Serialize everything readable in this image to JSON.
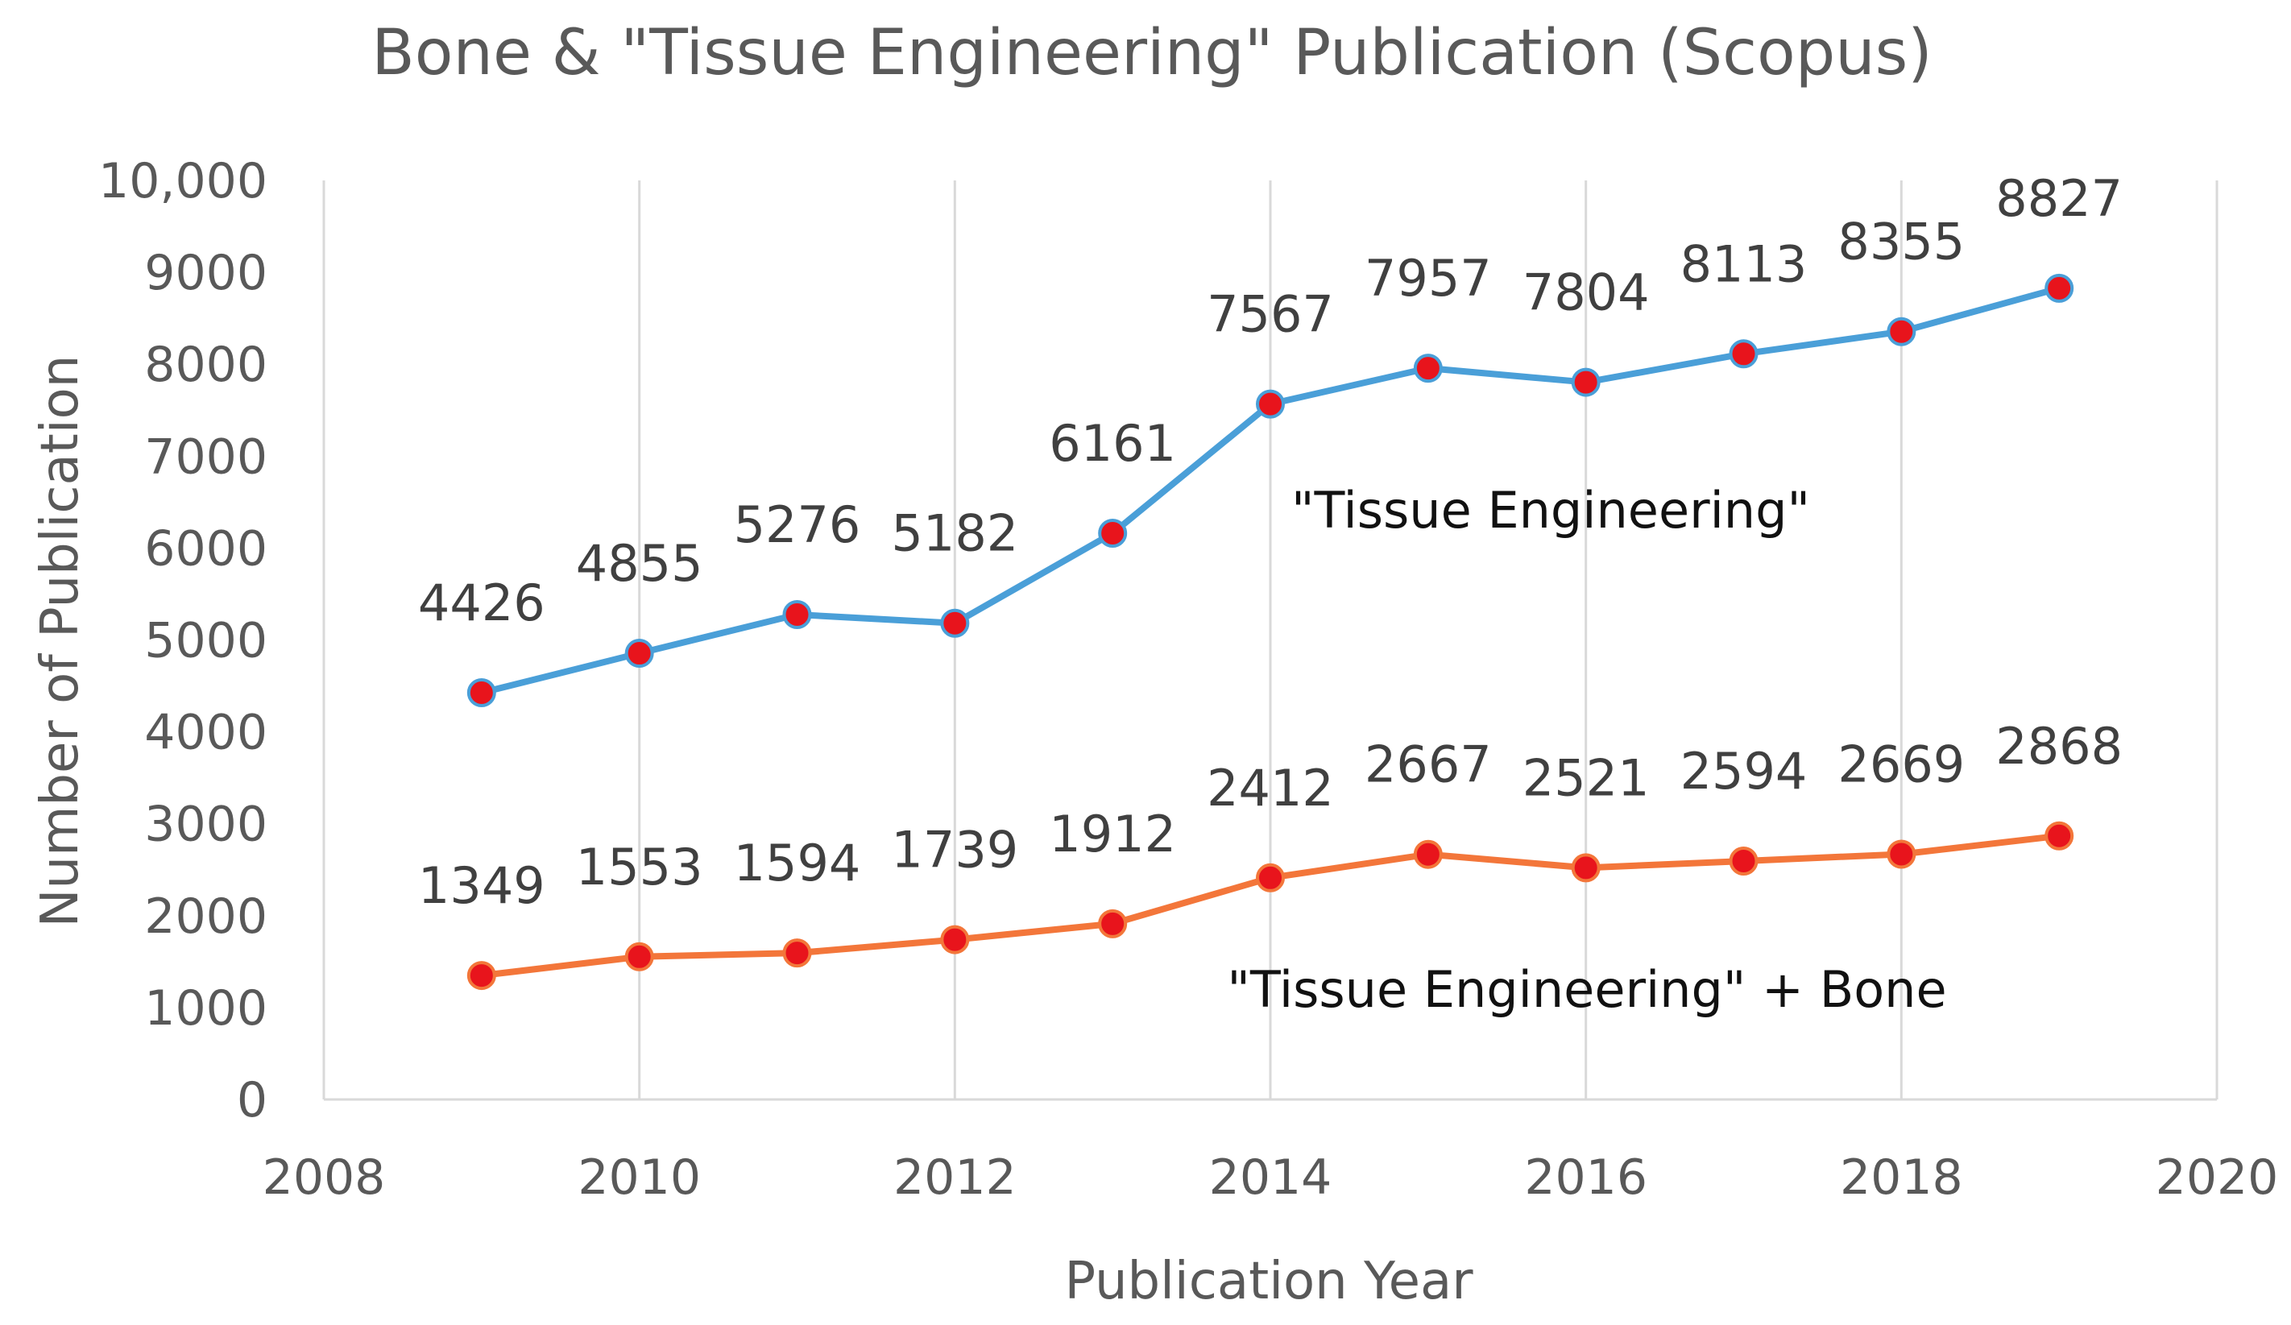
{
  "chart_data": {
    "type": "line",
    "title": "Bone & \"Tissue Engineering\" Publication (Scopus)",
    "xlabel": "Publication Year",
    "ylabel": "Number of Publication",
    "xlim": [
      2008,
      2020
    ],
    "ylim": [
      0,
      10000
    ],
    "x_ticks": [
      2008,
      2010,
      2012,
      2014,
      2016,
      2018,
      2020
    ],
    "x_tick_labels": [
      "2008",
      "2010",
      "2012",
      "2014",
      "2016",
      "2018",
      "2020"
    ],
    "y_ticks": [
      0,
      1000,
      2000,
      3000,
      4000,
      5000,
      6000,
      7000,
      8000,
      9000,
      10000
    ],
    "y_tick_labels": [
      "0",
      "1000",
      "2000",
      "3000",
      "4000",
      "5000",
      "6000",
      "7000",
      "8000",
      "9000",
      "10,000"
    ],
    "grid": "vertical",
    "x": [
      2009,
      2010,
      2011,
      2012,
      2013,
      2014,
      2015,
      2016,
      2017,
      2018,
      2019
    ],
    "series": [
      {
        "name": "\"Tissue Engineering\"",
        "color": "#4a9fd8",
        "marker_color": "#e8141c",
        "values": [
          4426,
          4855,
          5276,
          5182,
          6161,
          7567,
          7957,
          7804,
          8113,
          8355,
          8827
        ],
        "data_labels": [
          "4426",
          "4855",
          "5276",
          "5182",
          "6161",
          "7567",
          "7957",
          "7804",
          "8113",
          "8355",
          "8827"
        ]
      },
      {
        "name": "\"Tissue Engineering\" + Bone",
        "color": "#f3763a",
        "marker_color": "#e8141c",
        "values": [
          1349,
          1553,
          1594,
          1739,
          1912,
          2412,
          2667,
          2521,
          2594,
          2669,
          2868
        ],
        "data_labels": [
          "1349",
          "1553",
          "1594",
          "1739",
          "1912",
          "2412",
          "2667",
          "2521",
          "2594",
          "2669",
          "2868"
        ]
      }
    ]
  }
}
